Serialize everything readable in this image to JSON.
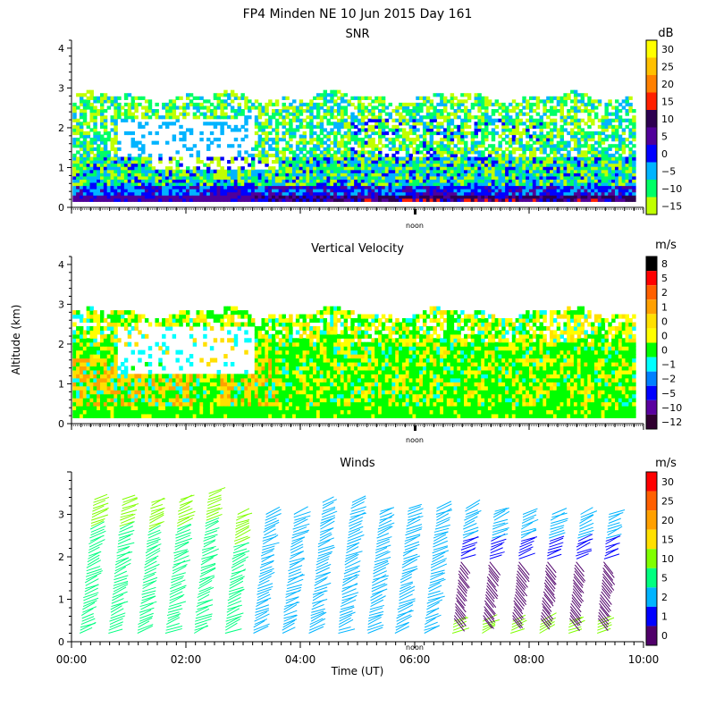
{
  "figure": {
    "title": "FP4 Minden NE  10 Jun 2015 Day 161",
    "ylabel": "Altitude (km)",
    "xlabel": "Time (UT)",
    "noon_label": "noon"
  },
  "chart_data": [
    {
      "type": "heatmap",
      "title": "SNR",
      "ylim": [
        0,
        4.2
      ],
      "yticks": [
        "0",
        "1",
        "2",
        "3",
        "4"
      ],
      "xlim": [
        0,
        10
      ],
      "colorbar": {
        "unit": "dB",
        "labels": [
          "30",
          "25",
          "20",
          "15",
          "10",
          "5",
          "0",
          "−5",
          "−10",
          "−15"
        ],
        "colors": [
          "#ffff00",
          "#ffc000",
          "#ff8000",
          "#ff2000",
          "#2d0050",
          "#50009a",
          "#0000ff",
          "#00b4ff",
          "#00ff66",
          "#c0ff00"
        ]
      }
    },
    {
      "type": "heatmap",
      "title": "Vertical Velocity",
      "ylim": [
        0,
        4.2
      ],
      "yticks": [
        "0",
        "1",
        "2",
        "3",
        "4"
      ],
      "xlim": [
        0,
        10
      ],
      "colorbar": {
        "unit": "m/s",
        "labels": [
          "8",
          "5",
          "2",
          "1",
          "0",
          "0",
          "0",
          "−1",
          "−2",
          "−5",
          "−10",
          "−12"
        ],
        "colors": [
          "#000000",
          "#ff0000",
          "#ff6000",
          "#ffa000",
          "#ffe000",
          "#ffff00",
          "#00ff00",
          "#00ffff",
          "#0080ff",
          "#0000ff",
          "#5a00a0",
          "#300030"
        ]
      }
    },
    {
      "type": "scatter",
      "title": "Winds",
      "ylim": [
        0,
        4
      ],
      "yticks": [
        "0",
        "1",
        "2",
        "3"
      ],
      "xlim": [
        0,
        10
      ],
      "xticks": [
        "00:00",
        "02:00",
        "04:00",
        "06:00",
        "08:00",
        "10:00"
      ],
      "colorbar": {
        "unit": "m/s",
        "labels": [
          "30",
          "25",
          "20",
          "15",
          "10",
          "5",
          "2",
          "1",
          "0"
        ],
        "colors": [
          "#ff0000",
          "#ff6000",
          "#ffa000",
          "#ffe000",
          "#80ff00",
          "#00ff80",
          "#00b4ff",
          "#0000ff",
          "#50006a"
        ]
      },
      "profile_times": [
        0.4,
        0.9,
        1.4,
        1.9,
        2.4,
        2.9,
        3.4,
        3.9,
        4.4,
        4.9,
        5.4,
        5.9,
        6.4,
        6.9,
        7.4,
        7.9,
        8.4,
        8.9,
        9.4
      ],
      "profile_tops": [
        3.4,
        3.4,
        3.3,
        3.4,
        3.5,
        3.0,
        3.0,
        3.0,
        3.3,
        3.3,
        3.1,
        3.2,
        3.2,
        3.2,
        3.1,
        3.0,
        3.0,
        3.0,
        3.0
      ]
    }
  ]
}
